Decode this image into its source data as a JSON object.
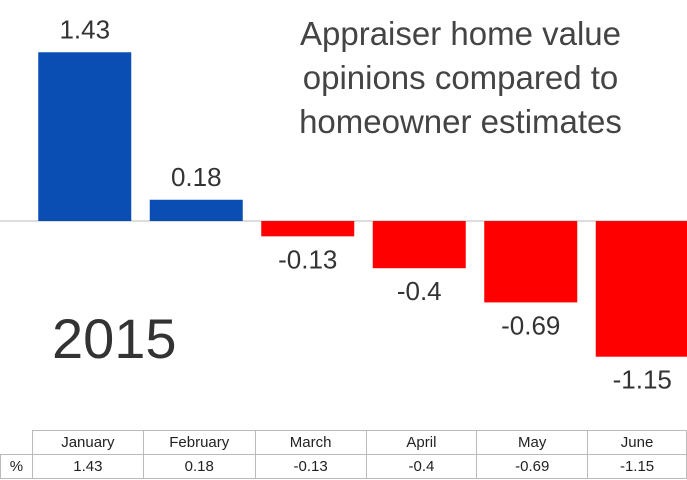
{
  "chart_data": {
    "type": "bar",
    "title": "Appraiser home value opinions compared to homeowner estimates",
    "annotation": "2015",
    "categories": [
      "January",
      "February",
      "March",
      "April",
      "May",
      "June"
    ],
    "values": [
      1.43,
      0.18,
      -0.13,
      -0.4,
      -0.69,
      -1.15
    ],
    "positive_color": "#0a4db3",
    "negative_color": "#ff0000",
    "table": {
      "row_label": "%"
    }
  }
}
